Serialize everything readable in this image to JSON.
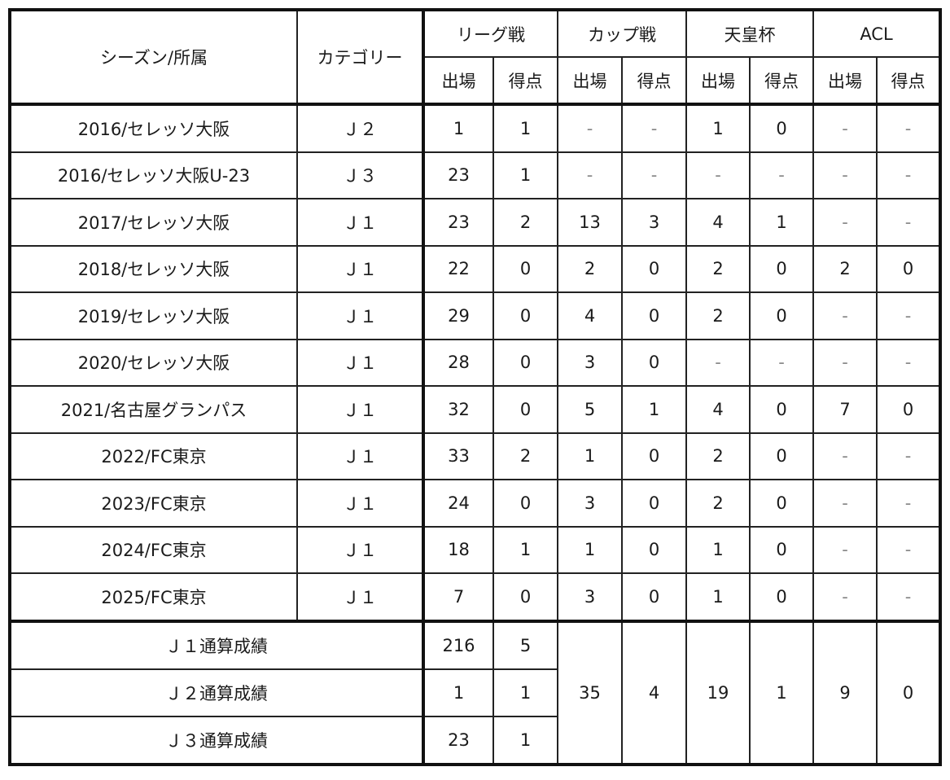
{
  "header": {
    "season_label": "シーズン/所属",
    "category_label": "カテゴリー",
    "competitions": [
      {
        "label": "リーグ戦"
      },
      {
        "label": "カップ戦"
      },
      {
        "label": "天皇杯"
      },
      {
        "label": "ACL"
      }
    ],
    "sub": {
      "apps": "出場",
      "goals": "得点"
    }
  },
  "rows": [
    {
      "season": "2016/セレッソ大阪",
      "category": "Ｊ２",
      "v": [
        "1",
        "1",
        "-",
        "-",
        "1",
        "0",
        "-",
        "-"
      ]
    },
    {
      "season": "2016/セレッソ大阪U-23",
      "category": "Ｊ３",
      "v": [
        "23",
        "1",
        "-",
        "-",
        "-",
        "-",
        "-",
        "-"
      ]
    },
    {
      "season": "2017/セレッソ大阪",
      "category": "Ｊ１",
      "v": [
        "23",
        "2",
        "13",
        "3",
        "4",
        "1",
        "-",
        "-"
      ]
    },
    {
      "season": "2018/セレッソ大阪",
      "category": "Ｊ１",
      "v": [
        "22",
        "0",
        "2",
        "0",
        "2",
        "0",
        "2",
        "0"
      ]
    },
    {
      "season": "2019/セレッソ大阪",
      "category": "Ｊ１",
      "v": [
        "29",
        "0",
        "4",
        "0",
        "2",
        "0",
        "-",
        "-"
      ]
    },
    {
      "season": "2020/セレッソ大阪",
      "category": "Ｊ１",
      "v": [
        "28",
        "0",
        "3",
        "0",
        "-",
        "-",
        "-",
        "-"
      ]
    },
    {
      "season": "2021/名古屋グランパス",
      "category": "Ｊ１",
      "v": [
        "32",
        "0",
        "5",
        "1",
        "4",
        "0",
        "7",
        "0"
      ]
    },
    {
      "season": "2022/FC東京",
      "category": "Ｊ１",
      "v": [
        "33",
        "2",
        "1",
        "0",
        "2",
        "0",
        "-",
        "-"
      ]
    },
    {
      "season": "2023/FC東京",
      "category": "Ｊ１",
      "v": [
        "24",
        "0",
        "3",
        "0",
        "2",
        "0",
        "-",
        "-"
      ]
    },
    {
      "season": "2024/FC東京",
      "category": "Ｊ１",
      "v": [
        "18",
        "1",
        "1",
        "0",
        "1",
        "0",
        "-",
        "-"
      ]
    },
    {
      "season": "2025/FC東京",
      "category": "Ｊ１",
      "v": [
        "7",
        "0",
        "3",
        "0",
        "1",
        "0",
        "-",
        "-"
      ]
    }
  ],
  "totals": {
    "rows": [
      {
        "label": "Ｊ１通算成績",
        "league_apps": "216",
        "league_goals": "5"
      },
      {
        "label": "Ｊ２通算成績",
        "league_apps": "1",
        "league_goals": "1"
      },
      {
        "label": "Ｊ３通算成績",
        "league_apps": "23",
        "league_goals": "1"
      }
    ],
    "cup_apps": "35",
    "cup_goals": "4",
    "emperor_apps": "19",
    "emperor_goals": "1",
    "acl_apps": "9",
    "acl_goals": "0"
  }
}
